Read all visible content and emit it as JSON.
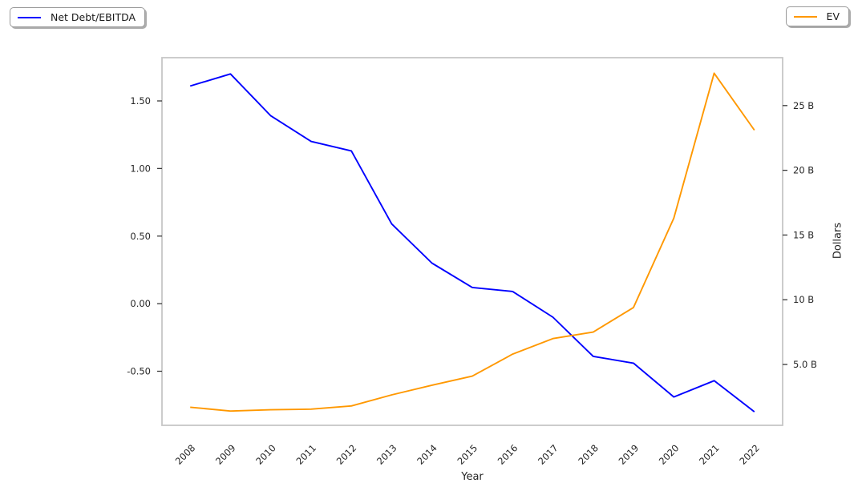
{
  "legend_left": {
    "label": "Net Debt/EBITDA"
  },
  "legend_right": {
    "label": "EV"
  },
  "axes": {
    "xlabel": "Year",
    "right_ylabel": "Dollars"
  },
  "colors": {
    "net_debt_line": "#0000ff",
    "ev_line": "#ff9800",
    "spine": "#c6c6c6",
    "tick_mark": "#3a3a3a",
    "tick_text": "#262626",
    "background": "#ffffff"
  },
  "chart_data": {
    "type": "line",
    "title": "",
    "xlabel": "Year",
    "grid": false,
    "x": [
      2008,
      2009,
      2010,
      2011,
      2012,
      2013,
      2014,
      2015,
      2016,
      2017,
      2018,
      2019,
      2020,
      2021,
      2022
    ],
    "x_tick_labels": [
      "2008",
      "2009",
      "2010",
      "2011",
      "2012",
      "2013",
      "2014",
      "2015",
      "2016",
      "2017",
      "2018",
      "2019",
      "2020",
      "2021",
      "2022"
    ],
    "xlim": [
      2007.3,
      2022.7
    ],
    "series": [
      {
        "name": "Net Debt/EBITDA",
        "axis": "left",
        "color_key": "net_debt_line",
        "values": [
          1.61,
          1.7,
          1.39,
          1.2,
          1.13,
          0.59,
          0.3,
          0.12,
          0.09,
          -0.1,
          -0.39,
          -0.44,
          -0.69,
          -0.57,
          -0.8
        ]
      },
      {
        "name": "EV",
        "axis": "right",
        "color_key": "ev_line",
        "values": [
          1.7,
          1.4,
          1.5,
          1.55,
          1.8,
          2.65,
          3.4,
          4.1,
          5.8,
          7.0,
          7.5,
          9.4,
          16.3,
          27.5,
          23.1
        ]
      }
    ],
    "left_axis": {
      "ylabel": "",
      "ylim": [
        -0.9,
        1.82
      ],
      "ticks": [
        {
          "value": 1.5,
          "label": "1.50"
        },
        {
          "value": 1.0,
          "label": "1.00"
        },
        {
          "value": 0.5,
          "label": "0.50"
        },
        {
          "value": 0.0,
          "label": "0.00"
        },
        {
          "value": -0.5,
          "label": "-0.50"
        }
      ]
    },
    "right_axis": {
      "ylabel": "Dollars",
      "ylim": [
        0.3,
        28.7
      ],
      "ticks": [
        {
          "value": 25,
          "label": "25 B"
        },
        {
          "value": 20,
          "label": "20 B"
        },
        {
          "value": 15,
          "label": "15 B"
        },
        {
          "value": 10,
          "label": "10 B"
        },
        {
          "value": 5,
          "label": "5.0 B"
        }
      ]
    },
    "legend": [
      {
        "label": "Net Debt/EBITDA",
        "color_key": "net_debt_line",
        "position": "top-left-outside"
      },
      {
        "label": "EV",
        "color_key": "ev_line",
        "position": "top-right-outside"
      }
    ]
  }
}
